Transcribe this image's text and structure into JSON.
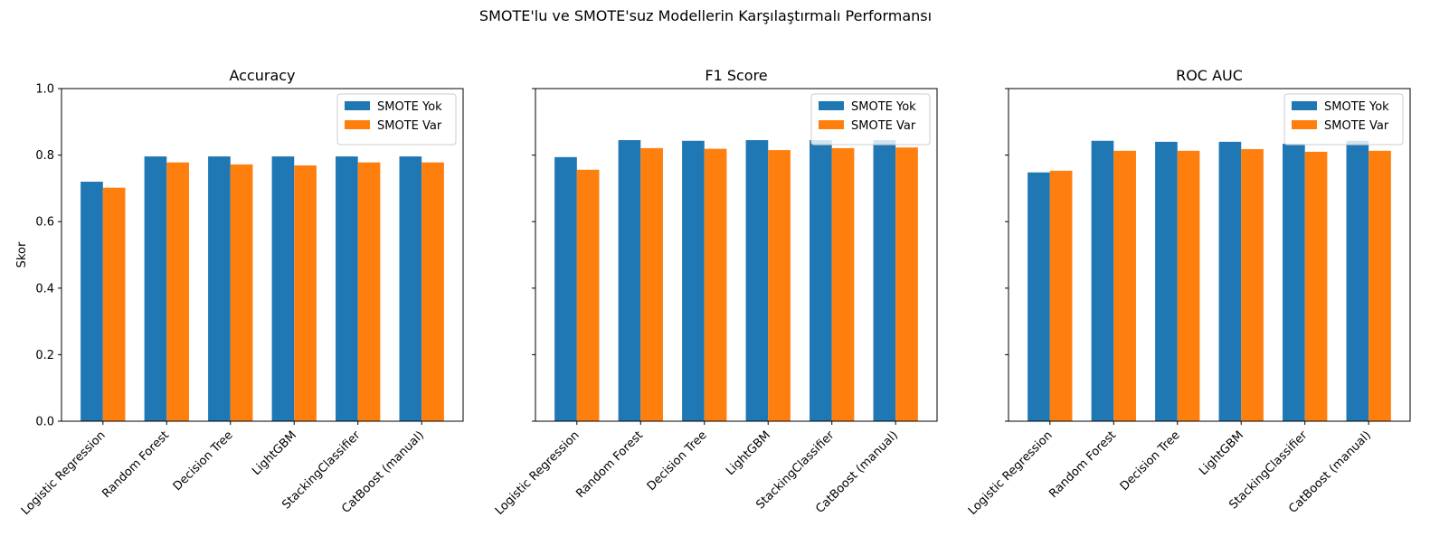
{
  "figure": {
    "suptitle": "SMOTE'lu ve SMOTE'suz Modellerin Karşılaştırmalı Performansı"
  },
  "chart_data": [
    {
      "type": "bar",
      "title": "Accuracy",
      "xlabel": "",
      "ylabel": "Skor",
      "ylim": [
        0,
        1
      ],
      "yticks": [
        "0.0",
        "0.2",
        "0.4",
        "0.6",
        "0.8",
        "1.0"
      ],
      "show_ytick_labels": true,
      "legend_position": "top-right",
      "categories": [
        "Logistic Regression",
        "Random Forest",
        "Decision Tree",
        "LightGBM",
        "StackingClassifier",
        "CatBoost (manual)"
      ],
      "series": [
        {
          "name": "SMOTE Yok",
          "color": "#1f77b4",
          "values": [
            0.72,
            0.796,
            0.796,
            0.796,
            0.796,
            0.796
          ]
        },
        {
          "name": "SMOTE Var",
          "color": "#ff7f0e",
          "values": [
            0.702,
            0.778,
            0.772,
            0.769,
            0.778,
            0.778
          ]
        }
      ]
    },
    {
      "type": "bar",
      "title": "F1 Score",
      "xlabel": "",
      "ylabel": "",
      "ylim": [
        0,
        1
      ],
      "yticks": [
        "0.0",
        "0.2",
        "0.4",
        "0.6",
        "0.8",
        "1.0"
      ],
      "show_ytick_labels": false,
      "legend_position": "top-right",
      "categories": [
        "Logistic Regression",
        "Random Forest",
        "Decision Tree",
        "LightGBM",
        "StackingClassifier",
        "CatBoost (manual)"
      ],
      "series": [
        {
          "name": "SMOTE Yok",
          "color": "#1f77b4",
          "values": [
            0.794,
            0.845,
            0.843,
            0.845,
            0.845,
            0.845
          ]
        },
        {
          "name": "SMOTE Var",
          "color": "#ff7f0e",
          "values": [
            0.756,
            0.821,
            0.819,
            0.815,
            0.821,
            0.823
          ]
        }
      ]
    },
    {
      "type": "bar",
      "title": "ROC AUC",
      "xlabel": "",
      "ylabel": "",
      "ylim": [
        0,
        1
      ],
      "yticks": [
        "0.0",
        "0.2",
        "0.4",
        "0.6",
        "0.8",
        "1.0"
      ],
      "show_ytick_labels": false,
      "legend_position": "top-right",
      "categories": [
        "Logistic Regression",
        "Random Forest",
        "Decision Tree",
        "LightGBM",
        "StackingClassifier",
        "CatBoost (manual)"
      ],
      "series": [
        {
          "name": "SMOTE Yok",
          "color": "#1f77b4",
          "values": [
            0.748,
            0.843,
            0.84,
            0.84,
            0.834,
            0.843
          ]
        },
        {
          "name": "SMOTE Var",
          "color": "#ff7f0e",
          "values": [
            0.753,
            0.813,
            0.813,
            0.818,
            0.81,
            0.813
          ]
        }
      ]
    }
  ]
}
